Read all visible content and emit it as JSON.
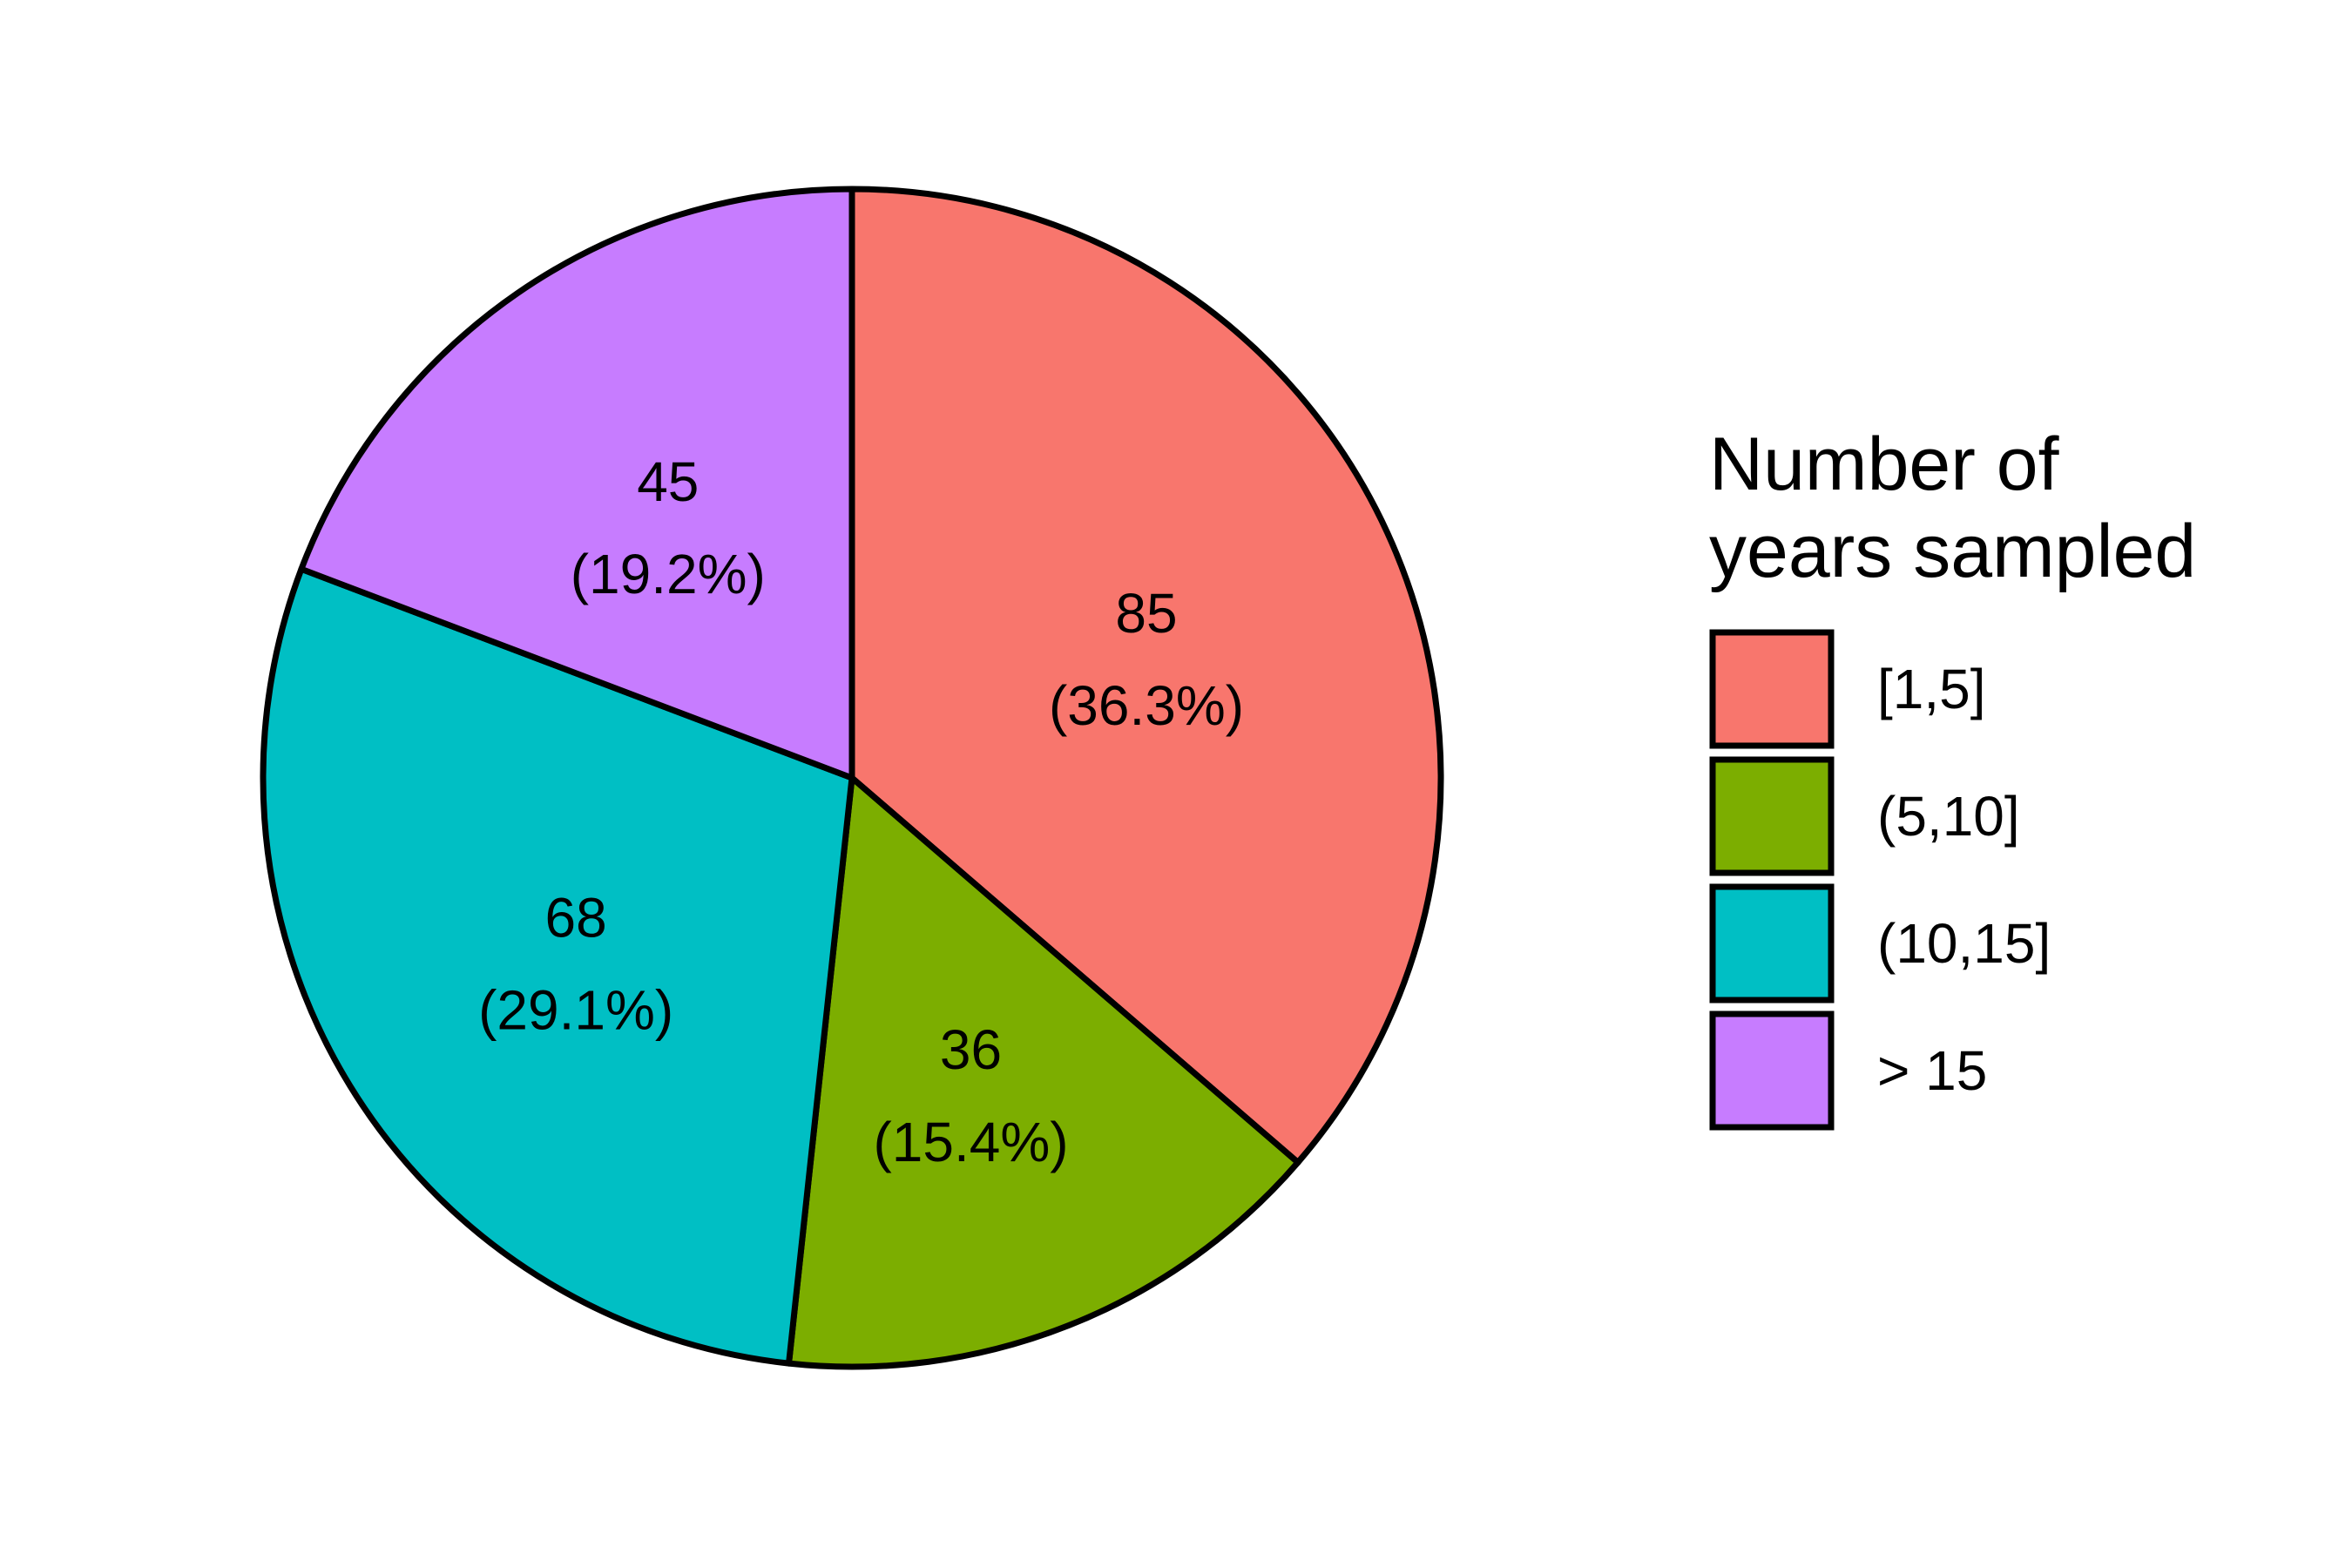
{
  "chart_data": {
    "type": "pie",
    "categories": [
      "[1,5]",
      "(5,10]",
      "(10,15]",
      "> 15"
    ],
    "values": [
      85,
      36,
      68,
      45
    ],
    "percent_labels": [
      "(36.3%)",
      "(15.4%)",
      "(29.1%)",
      "(19.2%)"
    ],
    "colors": [
      "#F8766D",
      "#7CAE00",
      "#00BFC4",
      "#C77CFF"
    ],
    "start": "top",
    "direction": "clockwise",
    "legend": {
      "title_lines": [
        "Number of",
        "years sampled"
      ],
      "position": "right"
    }
  }
}
